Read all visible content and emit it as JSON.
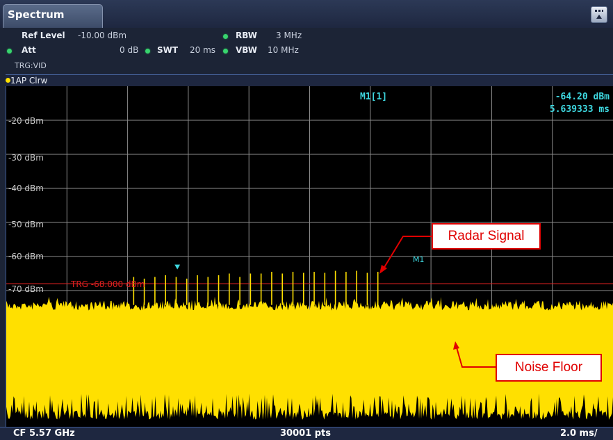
{
  "window": {
    "tab_title": "Spectrum",
    "menu_icon": "menu-expand-icon"
  },
  "settings": {
    "ref_level_label": "Ref Level",
    "ref_level_value": "-10.00 dBm",
    "att_label": "Att",
    "att_value": "0 dB",
    "swt_label": "SWT",
    "swt_value": "20 ms",
    "rbw_label": "RBW",
    "rbw_value": "3 MHz",
    "vbw_label": "VBW",
    "vbw_value": "10 MHz",
    "trigger": "TRG:VID",
    "colors": {
      "status_led": "#38d46e"
    }
  },
  "trace": {
    "label": "1AP Clrw",
    "color": "#ffe000"
  },
  "plot": {
    "y_labels": [
      "-20 dBm",
      "-30 dBm",
      "-40 dBm",
      "-50 dBm",
      "-60 dBm",
      "-70 dBm"
    ],
    "marker": {
      "name": "M1[1]",
      "value": "-64.20 dBm",
      "time": "5.639333 ms",
      "flag_label": "M1"
    },
    "trigger_line": {
      "label": "TRG -68.000 dBm",
      "level_dbm": -68.0,
      "color": "#e02020"
    },
    "colors": {
      "background": "#000000",
      "grid": "#8c8c8c",
      "marker": "#3ed8e0"
    }
  },
  "statusbar": {
    "center_freq": "CF 5.57 GHz",
    "points": "30001 pts",
    "time_div": "2.0 ms/"
  },
  "annotations": {
    "radar_signal": "Radar Signal",
    "noise_floor": "Noise Floor",
    "color": "#e00000"
  },
  "chart_data": {
    "type": "line",
    "xlabel": "",
    "ylabel": "",
    "y_unit": "dBm",
    "x_unit": "ms",
    "xlim": [
      0,
      20
    ],
    "ylim": [
      -110,
      -10
    ],
    "grid": true,
    "noise_floor_dbm": -73,
    "trigger_level_dbm": -68.0,
    "marker": {
      "x_ms": 5.639333,
      "y_dbm": -64.2
    },
    "radar_pulses": {
      "x_ms": [
        4.2,
        4.55,
        4.9,
        5.25,
        5.6,
        5.95,
        6.3,
        6.65,
        7.0,
        7.35,
        7.7,
        8.05,
        8.4,
        8.75,
        9.1,
        9.45,
        9.8,
        10.15,
        10.5,
        10.85,
        11.2,
        11.55,
        11.9,
        12.25
      ],
      "y_dbm": [
        -66,
        -66.5,
        -66,
        -65.5,
        -66,
        -66.5,
        -65.5,
        -66,
        -65.5,
        -65,
        -66,
        -65,
        -65,
        -64.5,
        -65,
        -64.5,
        -64.8,
        -64.5,
        -64.8,
        -64.2,
        -64.5,
        -64.2,
        -64.8,
        -64.5
      ]
    }
  }
}
